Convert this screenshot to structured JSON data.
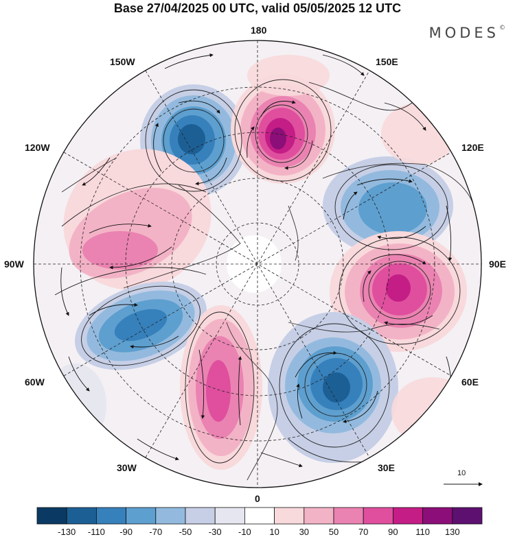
{
  "title": "Base 27/04/2025 00 UTC, valid 05/05/2025 12 UTC",
  "brand": "MODES",
  "brand_mark": "©",
  "longitude_labels": {
    "top": "180",
    "bottom": "0",
    "left": "90W",
    "right": "90E",
    "upper_left_1": "150W",
    "upper_left_2": "120W",
    "lower_left_1": "60W",
    "lower_left_2": "30W",
    "upper_right_1": "150E",
    "upper_right_2": "120E",
    "lower_right_1": "60E",
    "lower_right_2": "30E"
  },
  "wind_reference": {
    "value": "10"
  },
  "colorbar": {
    "levels": [
      "-130",
      "-110",
      "-90",
      "-70",
      "-50",
      "-30",
      "-10",
      "10",
      "30",
      "50",
      "70",
      "90",
      "110",
      "130"
    ],
    "colors": [
      "#0a3a63",
      "#1c5f95",
      "#3680bb",
      "#5d9fcf",
      "#93bade",
      "#c6cfe6",
      "#e6e6f0",
      "#ffffff",
      "#f8d9dc",
      "#f3b3c6",
      "#ea83b1",
      "#df4f9e",
      "#c41d86",
      "#8c0e78",
      "#5d1070"
    ]
  },
  "anomalies": [
    {
      "sign": "negative",
      "level": -110,
      "center_lon": "155W"
    },
    {
      "sign": "positive",
      "level": 110,
      "center_lon": "180"
    },
    {
      "sign": "negative",
      "level": -70,
      "center_lon": "120E"
    },
    {
      "sign": "positive",
      "level": 70,
      "center_lon": "100W"
    },
    {
      "sign": "positive",
      "level": 110,
      "center_lon": "80E"
    },
    {
      "sign": "negative",
      "level": -90,
      "center_lon": "60W"
    },
    {
      "sign": "positive",
      "level": 90,
      "center_lon": "20W"
    },
    {
      "sign": "negative",
      "level": -110,
      "center_lon": "30E"
    }
  ]
}
